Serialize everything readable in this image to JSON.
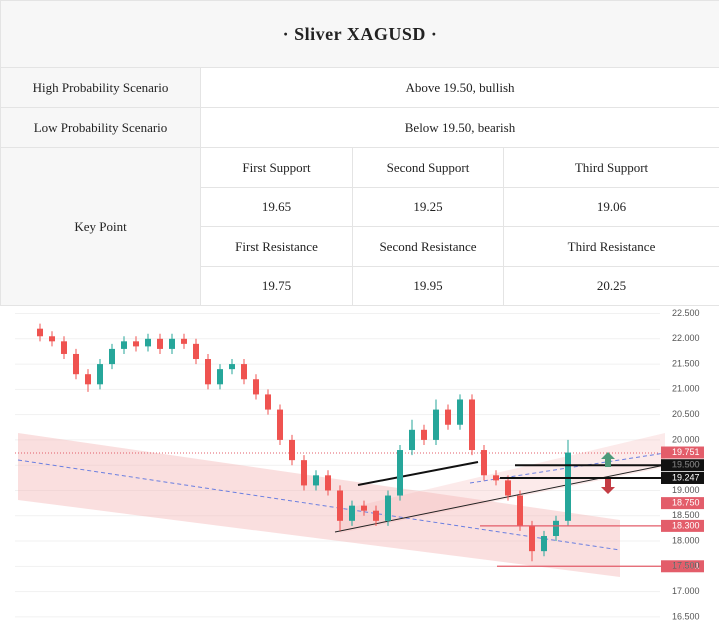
{
  "header": {
    "title": "· Sliver XAGUSD ·"
  },
  "table": {
    "rows": [
      [
        "High Probability Scenario",
        "Above 19.50, bullish"
      ],
      [
        "Low Probability Scenario",
        "Below 19.50, bearish"
      ]
    ],
    "key_point": {
      "label": "Key Point",
      "support_headers": [
        "First Support",
        "Second Support",
        "Third Support"
      ],
      "supports": [
        19.65,
        19.25,
        19.06
      ],
      "resistance_headers": [
        "First Resistance",
        "Second Resistance",
        "Third Resistance"
      ],
      "resistances": [
        19.75,
        19.95,
        20.25
      ]
    }
  },
  "chart_data": {
    "type": "candlestick",
    "candles": [
      [
        22.2,
        22.3,
        21.95,
        22.05
      ],
      [
        22.05,
        22.15,
        21.85,
        21.95
      ],
      [
        21.95,
        22.05,
        21.6,
        21.7
      ],
      [
        21.7,
        21.8,
        21.2,
        21.3
      ],
      [
        21.3,
        21.4,
        20.95,
        21.1
      ],
      [
        21.1,
        21.6,
        21.0,
        21.5
      ],
      [
        21.5,
        21.9,
        21.4,
        21.8
      ],
      [
        21.8,
        22.05,
        21.7,
        21.95
      ],
      [
        21.95,
        22.05,
        21.75,
        21.85
      ],
      [
        21.85,
        22.1,
        21.75,
        22.0
      ],
      [
        22.0,
        22.1,
        21.7,
        21.8
      ],
      [
        21.8,
        22.1,
        21.7,
        22.0
      ],
      [
        22.0,
        22.1,
        21.8,
        21.9
      ],
      [
        21.9,
        22.0,
        21.5,
        21.6
      ],
      [
        21.6,
        21.7,
        21.0,
        21.1
      ],
      [
        21.1,
        21.5,
        21.0,
        21.4
      ],
      [
        21.4,
        21.6,
        21.3,
        21.5
      ],
      [
        21.5,
        21.6,
        21.1,
        21.2
      ],
      [
        21.2,
        21.3,
        20.8,
        20.9
      ],
      [
        20.9,
        21.0,
        20.5,
        20.6
      ],
      [
        20.6,
        20.7,
        19.9,
        20.0
      ],
      [
        20.0,
        20.1,
        19.5,
        19.6
      ],
      [
        19.6,
        19.7,
        19.0,
        19.1
      ],
      [
        19.1,
        19.4,
        19.0,
        19.3
      ],
      [
        19.3,
        19.4,
        18.9,
        19.0
      ],
      [
        19.0,
        19.1,
        18.2,
        18.4
      ],
      [
        18.4,
        18.8,
        18.3,
        18.7
      ],
      [
        18.7,
        18.8,
        18.5,
        18.6
      ],
      [
        18.6,
        18.7,
        18.3,
        18.4
      ],
      [
        18.4,
        19.0,
        18.3,
        18.9
      ],
      [
        18.9,
        19.9,
        18.8,
        19.8
      ],
      [
        19.8,
        20.4,
        19.7,
        20.2
      ],
      [
        20.2,
        20.3,
        19.9,
        20.0
      ],
      [
        20.0,
        20.8,
        19.9,
        20.6
      ],
      [
        20.6,
        20.7,
        20.2,
        20.3
      ],
      [
        20.3,
        20.9,
        20.2,
        20.8
      ],
      [
        20.8,
        20.9,
        19.7,
        19.8
      ],
      [
        19.8,
        19.9,
        19.2,
        19.3
      ],
      [
        19.3,
        19.4,
        19.1,
        19.2
      ],
      [
        19.2,
        19.3,
        18.8,
        18.9
      ],
      [
        18.9,
        19.0,
        18.2,
        18.3
      ],
      [
        18.3,
        18.4,
        17.6,
        17.8
      ],
      [
        17.8,
        18.2,
        17.7,
        18.1
      ],
      [
        18.1,
        18.5,
        18.0,
        18.4
      ],
      [
        18.4,
        20.0,
        18.3,
        19.75
      ]
    ],
    "up_color": "#26a69a",
    "down_color": "#ef5350",
    "ylim": [
      16.3,
      22.53
    ],
    "yticks": [
      {
        "value": 22.5,
        "label": "22.500"
      },
      {
        "value": 22,
        "label": "22.000"
      },
      {
        "value": 21.5,
        "label": "21.500"
      },
      {
        "value": 21,
        "label": "21.000"
      },
      {
        "value": 20.5,
        "label": "20.500"
      },
      {
        "value": 20,
        "label": "20.000"
      },
      {
        "value": 19.5,
        "label": "19.500"
      },
      {
        "value": 19,
        "label": "19.000"
      },
      {
        "value": 18.5,
        "label": "18.500"
      },
      {
        "value": 18,
        "label": "18.000"
      },
      {
        "value": 17.5,
        "label": "17.500"
      },
      {
        "value": 17,
        "label": "17.000"
      },
      {
        "value": 16.5,
        "label": "16.500"
      }
    ],
    "grid": true,
    "price_labels": [
      {
        "value": 19.751,
        "label": "19.751",
        "color": "#e35d6a"
      },
      {
        "value": 19.5,
        "label": "19.500",
        "color": "#111111"
      },
      {
        "value": 19.247,
        "label": "19.247",
        "color": "#111111"
      },
      {
        "value": 18.75,
        "label": "18.750",
        "color": "#e35d6a"
      },
      {
        "value": 18.3,
        "label": "18.300",
        "color": "#e35d6a"
      },
      {
        "value": 17.501,
        "label": "17.501",
        "color": "#e35d6a"
      }
    ]
  }
}
